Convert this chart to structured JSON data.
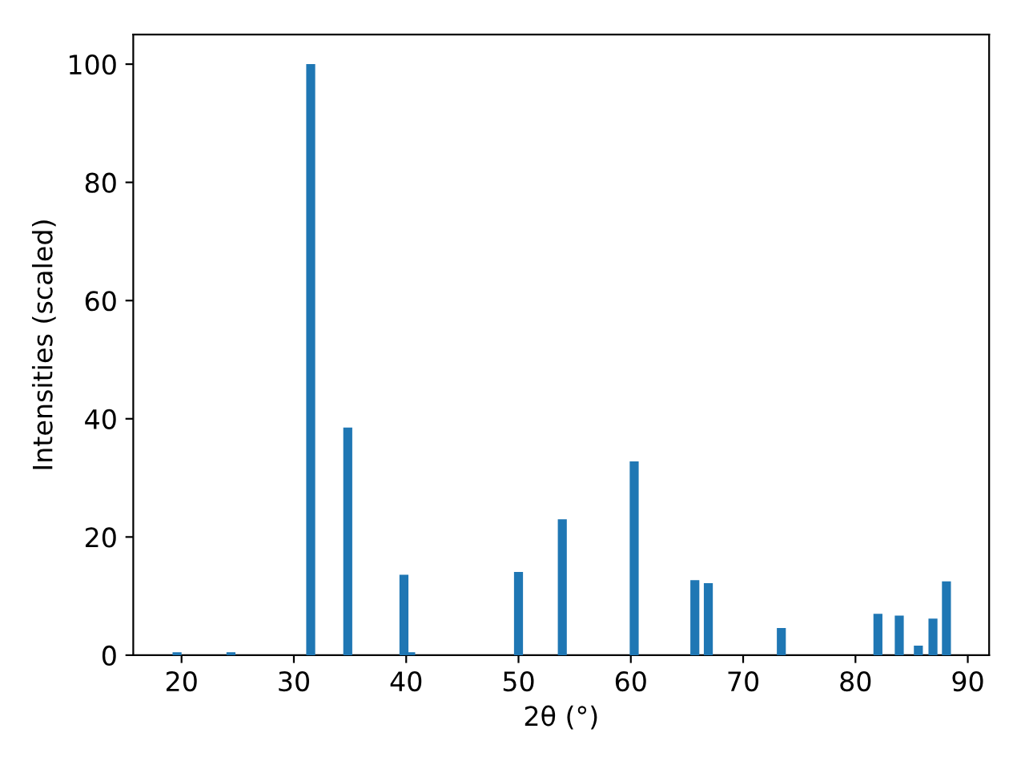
{
  "chart_data": {
    "type": "bar",
    "xlabel": "2θ (°)",
    "ylabel": "Intensities (scaled)",
    "x": [
      19.6,
      24.4,
      31.5,
      34.8,
      39.8,
      40.4,
      50.0,
      53.9,
      60.3,
      65.7,
      66.9,
      73.4,
      82.0,
      83.9,
      85.6,
      86.9,
      88.1
    ],
    "values": [
      0.5,
      0.5,
      100,
      38.5,
      13.6,
      0.5,
      14.1,
      23.0,
      32.8,
      12.7,
      12.2,
      4.6,
      7.0,
      6.7,
      1.6,
      6.2,
      12.5
    ],
    "color": "#1f77b4",
    "xlim": [
      15.7,
      91.9
    ],
    "ylim": [
      0,
      105
    ],
    "xticks": [
      20,
      30,
      40,
      50,
      60,
      70,
      80,
      90
    ],
    "yticks": [
      0,
      20,
      40,
      60,
      80,
      100
    ],
    "grid": false
  }
}
